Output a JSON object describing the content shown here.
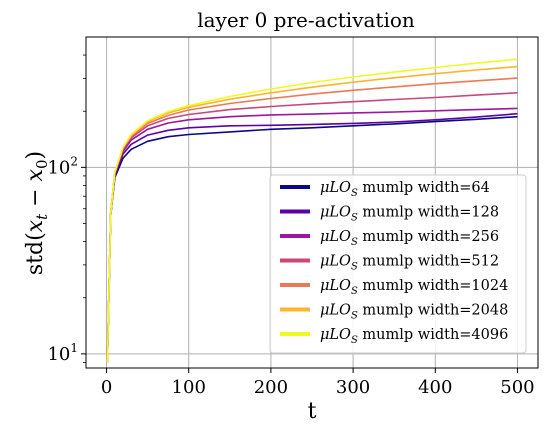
{
  "chart_data": {
    "type": "line",
    "title": "layer 0 pre-activation",
    "xlabel": "t",
    "ylabel": "std(x_t − x_0)",
    "ylabel_parts": {
      "prefix": "std(",
      "x": "x",
      "t": "t",
      "minus": " − ",
      "x0": "x",
      "zero": "0",
      "suffix": ")"
    },
    "xscale": "linear",
    "yscale": "log",
    "xlim": [
      -25,
      525
    ],
    "ylim": [
      8.4,
      500
    ],
    "xticks": [
      0,
      100,
      200,
      300,
      400,
      500
    ],
    "xtick_labels": [
      "0",
      "100",
      "200",
      "300",
      "400",
      "500"
    ],
    "yticks": [
      10,
      100
    ],
    "ytick_labels": {
      "t10": {
        "base": "10",
        "exp": "1"
      },
      "t100": {
        "base": "10",
        "exp": "2"
      }
    },
    "grid": true,
    "legend": {
      "placement": "lower-right",
      "label_prefix": "μLO",
      "label_sub": "S"
    },
    "series": [
      {
        "name": "μLO_S mumlp width=64",
        "legend_text": " mumlp width=64",
        "color": "#0d0887",
        "x": [
          1,
          5,
          10,
          20,
          30,
          50,
          75,
          100,
          150,
          200,
          250,
          300,
          350,
          400,
          450,
          500
        ],
        "y": [
          9,
          55,
          88,
          112,
          125,
          138,
          146,
          150,
          155,
          160,
          163,
          167,
          171,
          176,
          181,
          187
        ]
      },
      {
        "name": "μLO_S mumlp width=128",
        "legend_text": " mumlp width=128",
        "color": "#5c01a6",
        "x": [
          1,
          5,
          10,
          20,
          30,
          50,
          75,
          100,
          150,
          200,
          250,
          300,
          350,
          400,
          450,
          500
        ],
        "y": [
          9,
          56,
          90,
          118,
          133,
          149,
          158,
          163,
          167,
          168,
          170,
          172,
          175,
          180,
          186,
          194
        ]
      },
      {
        "name": "μLO_S mumlp width=256",
        "legend_text": " mumlp width=256",
        "color": "#9c179e",
        "x": [
          1,
          5,
          10,
          20,
          30,
          50,
          75,
          100,
          150,
          200,
          250,
          300,
          350,
          400,
          450,
          500
        ],
        "y": [
          9,
          57,
          92,
          122,
          140,
          160,
          173,
          180,
          187,
          191,
          193,
          196,
          198,
          201,
          204,
          207
        ]
      },
      {
        "name": "μLO_S mumlp width=512",
        "legend_text": " mumlp width=512",
        "color": "#cc4778",
        "x": [
          1,
          5,
          10,
          20,
          30,
          50,
          75,
          100,
          150,
          200,
          250,
          300,
          350,
          400,
          450,
          500
        ],
        "y": [
          9,
          57,
          93,
          125,
          144,
          167,
          183,
          192,
          204,
          212,
          219,
          225,
          231,
          237,
          244,
          251
        ]
      },
      {
        "name": "μLO_S mumlp width=1024",
        "legend_text": " mumlp width=1024",
        "color": "#ed7953",
        "x": [
          1,
          5,
          10,
          20,
          30,
          50,
          75,
          100,
          150,
          200,
          250,
          300,
          350,
          400,
          450,
          500
        ],
        "y": [
          9,
          57,
          94,
          127,
          147,
          172,
          190,
          203,
          220,
          234,
          247,
          259,
          270,
          281,
          291,
          301
        ]
      },
      {
        "name": "μLO_S mumlp width=2048",
        "legend_text": " mumlp width=2048",
        "color": "#fdb42f",
        "x": [
          1,
          5,
          10,
          20,
          30,
          50,
          75,
          100,
          150,
          200,
          250,
          300,
          350,
          400,
          450,
          500
        ],
        "y": [
          9,
          56,
          94,
          128,
          149,
          176,
          196,
          210,
          232,
          251,
          269,
          286,
          302,
          318,
          333,
          347
        ]
      },
      {
        "name": "μLO_S mumlp width=4096",
        "legend_text": " mumlp width=4096",
        "color": "#f0f921",
        "x": [
          1,
          5,
          10,
          20,
          30,
          50,
          75,
          100,
          150,
          200,
          250,
          300,
          350,
          400,
          450,
          500
        ],
        "y": [
          9,
          56,
          94,
          128,
          150,
          178,
          199,
          214,
          240,
          263,
          285,
          305,
          324,
          343,
          362,
          380
        ]
      }
    ]
  }
}
